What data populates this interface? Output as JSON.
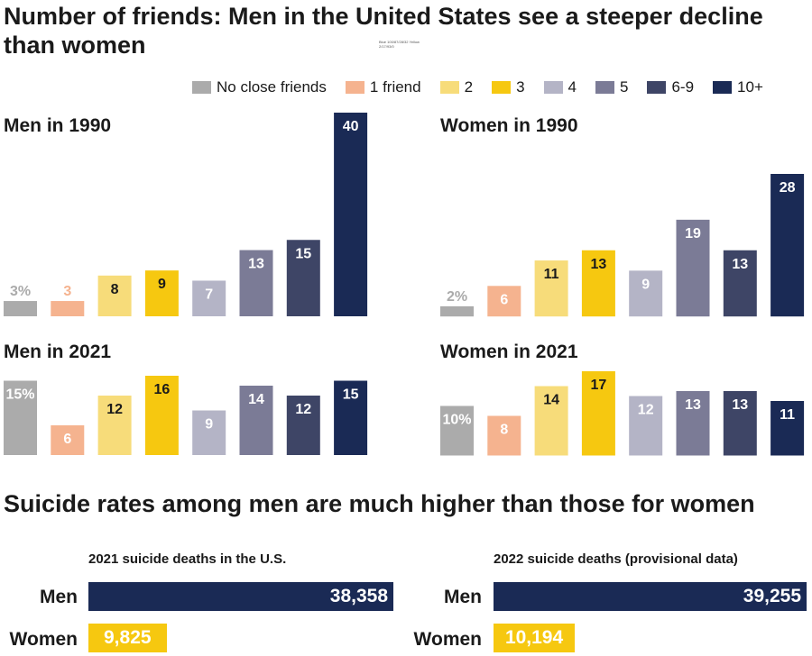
{
  "title": "Number of friends: Men in the United States see a steeper decline than women",
  "tiny_note": "Blue 100/87/28/32 Yellow 2/17/93/0",
  "legend": [
    {
      "label": "No close friends",
      "color": "#ababab"
    },
    {
      "label": "1 friend",
      "color": "#f5b38f"
    },
    {
      "label": "2",
      "color": "#f7dc7a"
    },
    {
      "label": "3",
      "color": "#f6c810"
    },
    {
      "label": "4",
      "color": "#b4b4c6"
    },
    {
      "label": "5",
      "color": "#7b7b96"
    },
    {
      "label": "6-9",
      "color": "#3e4566"
    },
    {
      "label": "10+",
      "color": "#1a2a55"
    }
  ],
  "section2_title": "Suicide rates among men are much higher than those for women",
  "chart_data": [
    {
      "type": "bar",
      "title": "Men in 1990",
      "categories": [
        "No close friends",
        "1 friend",
        "2",
        "3",
        "4",
        "5",
        "6-9",
        "10+"
      ],
      "values": [
        3,
        3,
        8,
        9,
        7,
        13,
        15,
        40
      ],
      "labels": [
        "3%",
        "3",
        "8",
        "9",
        "7",
        "13",
        "15",
        "40"
      ],
      "ylim": [
        0,
        40
      ]
    },
    {
      "type": "bar",
      "title": "Women in 1990",
      "categories": [
        "No close friends",
        "1 friend",
        "2",
        "3",
        "4",
        "5",
        "6-9",
        "10+"
      ],
      "values": [
        2,
        6,
        11,
        13,
        9,
        19,
        13,
        28
      ],
      "labels": [
        "2%",
        "6",
        "11",
        "13",
        "9",
        "19",
        "13",
        "28"
      ],
      "ylim": [
        0,
        40
      ]
    },
    {
      "type": "bar",
      "title": "Men in 2021",
      "categories": [
        "No close friends",
        "1 friend",
        "2",
        "3",
        "4",
        "5",
        "6-9",
        "10+"
      ],
      "values": [
        15,
        6,
        12,
        16,
        9,
        14,
        12,
        15
      ],
      "labels": [
        "15%",
        "6",
        "12",
        "16",
        "9",
        "14",
        "12",
        "15"
      ],
      "ylim": [
        0,
        17
      ]
    },
    {
      "type": "bar",
      "title": "Women in 2021",
      "categories": [
        "No close friends",
        "1 friend",
        "2",
        "3",
        "4",
        "5",
        "6-9",
        "10+"
      ],
      "values": [
        10,
        8,
        14,
        17,
        12,
        13,
        13,
        11
      ],
      "labels": [
        "10%",
        "8",
        "14",
        "17",
        "12",
        "13",
        "13",
        "11"
      ],
      "ylim": [
        0,
        17
      ]
    },
    {
      "type": "bar",
      "orientation": "horizontal",
      "title": "2021 suicide deaths in the U.S.",
      "categories": [
        "Men",
        "Women"
      ],
      "values": [
        38358,
        9825
      ],
      "labels": [
        "38,358",
        "9,825"
      ],
      "colors": [
        "#1a2a55",
        "#f6c810"
      ]
    },
    {
      "type": "bar",
      "orientation": "horizontal",
      "title": "2022 suicide deaths (provisional data)",
      "categories": [
        "Men",
        "Women"
      ],
      "values": [
        39255,
        10194
      ],
      "labels": [
        "39,255",
        "10,194"
      ],
      "colors": [
        "#1a2a55",
        "#f6c810"
      ]
    }
  ]
}
